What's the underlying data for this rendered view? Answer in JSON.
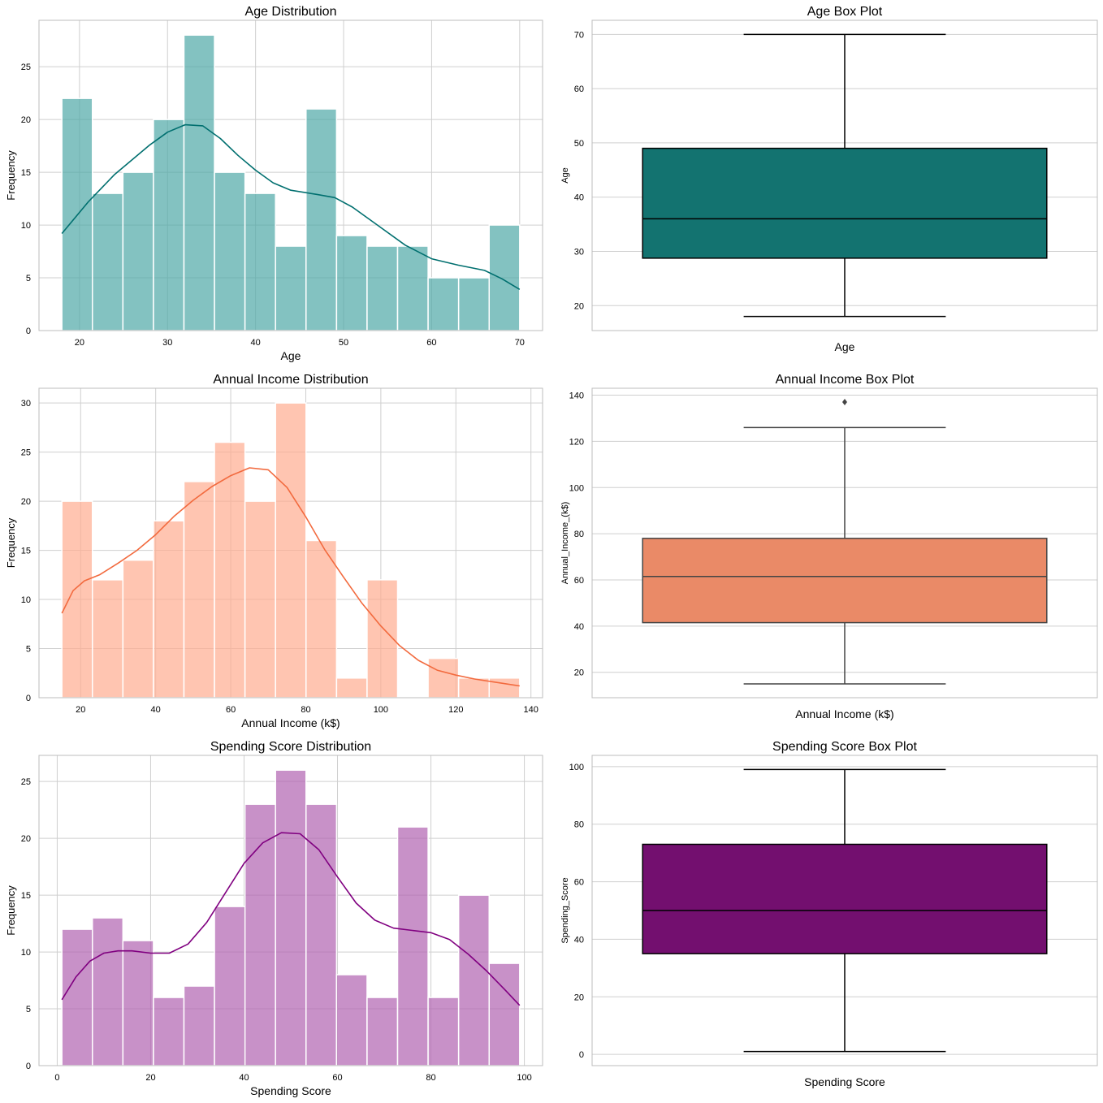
{
  "chart_data": [
    {
      "id": "age-hist",
      "type": "bar",
      "title": "Age Distribution",
      "xlabel": "Age",
      "ylabel": "Frequency",
      "color": "#4fa8a6",
      "kde_color": "#006f6f",
      "xlim": [
        15.4,
        72.6
      ],
      "ylim": [
        0,
        29.4
      ],
      "xticks": [
        20,
        30,
        40,
        50,
        60,
        70
      ],
      "yticks": [
        0,
        5,
        10,
        15,
        20,
        25
      ],
      "bin_start": 18,
      "bin_width": 3.4667,
      "values": [
        22,
        13,
        15,
        20,
        28,
        15,
        13,
        8,
        21,
        9,
        8,
        8,
        5,
        5,
        10
      ],
      "kde": [
        [
          18,
          9.2
        ],
        [
          21,
          12.2
        ],
        [
          24,
          14.8
        ],
        [
          28,
          17.6
        ],
        [
          30,
          18.8
        ],
        [
          32,
          19.5
        ],
        [
          34,
          19.4
        ],
        [
          36,
          18.2
        ],
        [
          38,
          16.6
        ],
        [
          40,
          15.2
        ],
        [
          42,
          14.0
        ],
        [
          44,
          13.3
        ],
        [
          47,
          12.9
        ],
        [
          49,
          12.6
        ],
        [
          51,
          11.7
        ],
        [
          54,
          9.9
        ],
        [
          57,
          8.1
        ],
        [
          60,
          6.8
        ],
        [
          63,
          6.2
        ],
        [
          66,
          5.7
        ],
        [
          68,
          4.9
        ],
        [
          70,
          3.9
        ]
      ]
    },
    {
      "id": "age-box",
      "type": "box",
      "title": "Age Box Plot",
      "xlabel": "Age",
      "ylabel": "Age",
      "color": "#137370",
      "edge_color": "#000000",
      "ylim": [
        15.4,
        72.6
      ],
      "yticks": [
        20,
        30,
        40,
        50,
        60,
        70
      ],
      "min": 18,
      "q1": 28.75,
      "median": 36,
      "q3": 49,
      "max": 70,
      "outliers": []
    },
    {
      "id": "income-hist",
      "type": "bar",
      "title": "Annual Income Distribution",
      "xlabel": "Annual Income (k$)",
      "ylabel": "Frequency",
      "color": "#ffad90",
      "kde_color": "#f26a3e",
      "xlim": [
        8.9,
        143.1
      ],
      "ylim": [
        0,
        31.5
      ],
      "xticks": [
        20,
        40,
        60,
        80,
        100,
        120,
        140
      ],
      "yticks": [
        0,
        5,
        10,
        15,
        20,
        25,
        30
      ],
      "bin_start": 15,
      "bin_width": 8.1333,
      "values": [
        20,
        12,
        14,
        18,
        22,
        26,
        20,
        30,
        16,
        2,
        12,
        0,
        4,
        2,
        2
      ],
      "kde": [
        [
          15,
          8.6
        ],
        [
          18,
          10.9
        ],
        [
          21,
          11.9
        ],
        [
          25,
          12.5
        ],
        [
          30,
          13.7
        ],
        [
          35,
          15.0
        ],
        [
          40,
          16.6
        ],
        [
          45,
          18.5
        ],
        [
          50,
          20.1
        ],
        [
          55,
          21.5
        ],
        [
          60,
          22.6
        ],
        [
          65,
          23.4
        ],
        [
          70,
          23.2
        ],
        [
          75,
          21.4
        ],
        [
          80,
          18.4
        ],
        [
          85,
          15.1
        ],
        [
          90,
          12.3
        ],
        [
          95,
          9.6
        ],
        [
          100,
          7.3
        ],
        [
          105,
          5.3
        ],
        [
          110,
          3.8
        ],
        [
          115,
          2.8
        ],
        [
          120,
          2.3
        ],
        [
          125,
          1.9
        ],
        [
          130,
          1.6
        ],
        [
          137,
          1.2
        ]
      ]
    },
    {
      "id": "income-box",
      "type": "box",
      "title": "Annual Income Box Plot",
      "xlabel": "Annual Income (k$)",
      "ylabel": "Annual_Income_(k$)",
      "color": "#ea8a67",
      "edge_color": "#444444",
      "ylim": [
        9,
        143
      ],
      "yticks": [
        20,
        40,
        60,
        80,
        100,
        120,
        140
      ],
      "min": 15,
      "q1": 41.5,
      "median": 61.5,
      "q3": 78,
      "max": 126,
      "outliers": [
        137
      ]
    },
    {
      "id": "score-hist",
      "type": "bar",
      "title": "Spending Score Distribution",
      "xlabel": "Spending Score",
      "ylabel": "Frequency",
      "color": "#b163b1",
      "kde_color": "#800080",
      "xlim": [
        -3.9,
        103.9
      ],
      "ylim": [
        0,
        27.3
      ],
      "xticks": [
        0,
        20,
        40,
        60,
        80,
        100
      ],
      "yticks": [
        0,
        5,
        10,
        15,
        20,
        25
      ],
      "bin_start": 1,
      "bin_width": 6.5333,
      "values": [
        12,
        13,
        11,
        6,
        7,
        14,
        23,
        26,
        23,
        8,
        6,
        21,
        6,
        15,
        9
      ],
      "kde": [
        [
          1,
          5.8
        ],
        [
          4,
          7.8
        ],
        [
          7,
          9.2
        ],
        [
          10,
          9.9
        ],
        [
          13,
          10.1
        ],
        [
          16,
          10.1
        ],
        [
          20,
          9.9
        ],
        [
          24,
          9.9
        ],
        [
          28,
          10.7
        ],
        [
          32,
          12.6
        ],
        [
          36,
          15.2
        ],
        [
          40,
          17.8
        ],
        [
          44,
          19.6
        ],
        [
          48,
          20.5
        ],
        [
          52,
          20.4
        ],
        [
          56,
          19.0
        ],
        [
          60,
          16.6
        ],
        [
          64,
          14.3
        ],
        [
          68,
          12.8
        ],
        [
          72,
          12.1
        ],
        [
          76,
          11.9
        ],
        [
          80,
          11.7
        ],
        [
          84,
          11.1
        ],
        [
          88,
          9.8
        ],
        [
          92,
          8.3
        ],
        [
          96,
          6.6
        ],
        [
          99,
          5.3
        ]
      ]
    },
    {
      "id": "score-box",
      "type": "box",
      "title": "Spending Score Box Plot",
      "xlabel": "Spending Score",
      "ylabel": "Spending_Score",
      "color": "#730f6f",
      "edge_color": "#000000",
      "ylim": [
        -3.9,
        103.9
      ],
      "yticks": [
        0,
        20,
        40,
        60,
        80,
        100
      ],
      "min": 1,
      "q1": 35,
      "median": 50,
      "q3": 73,
      "max": 99,
      "outliers": []
    }
  ]
}
